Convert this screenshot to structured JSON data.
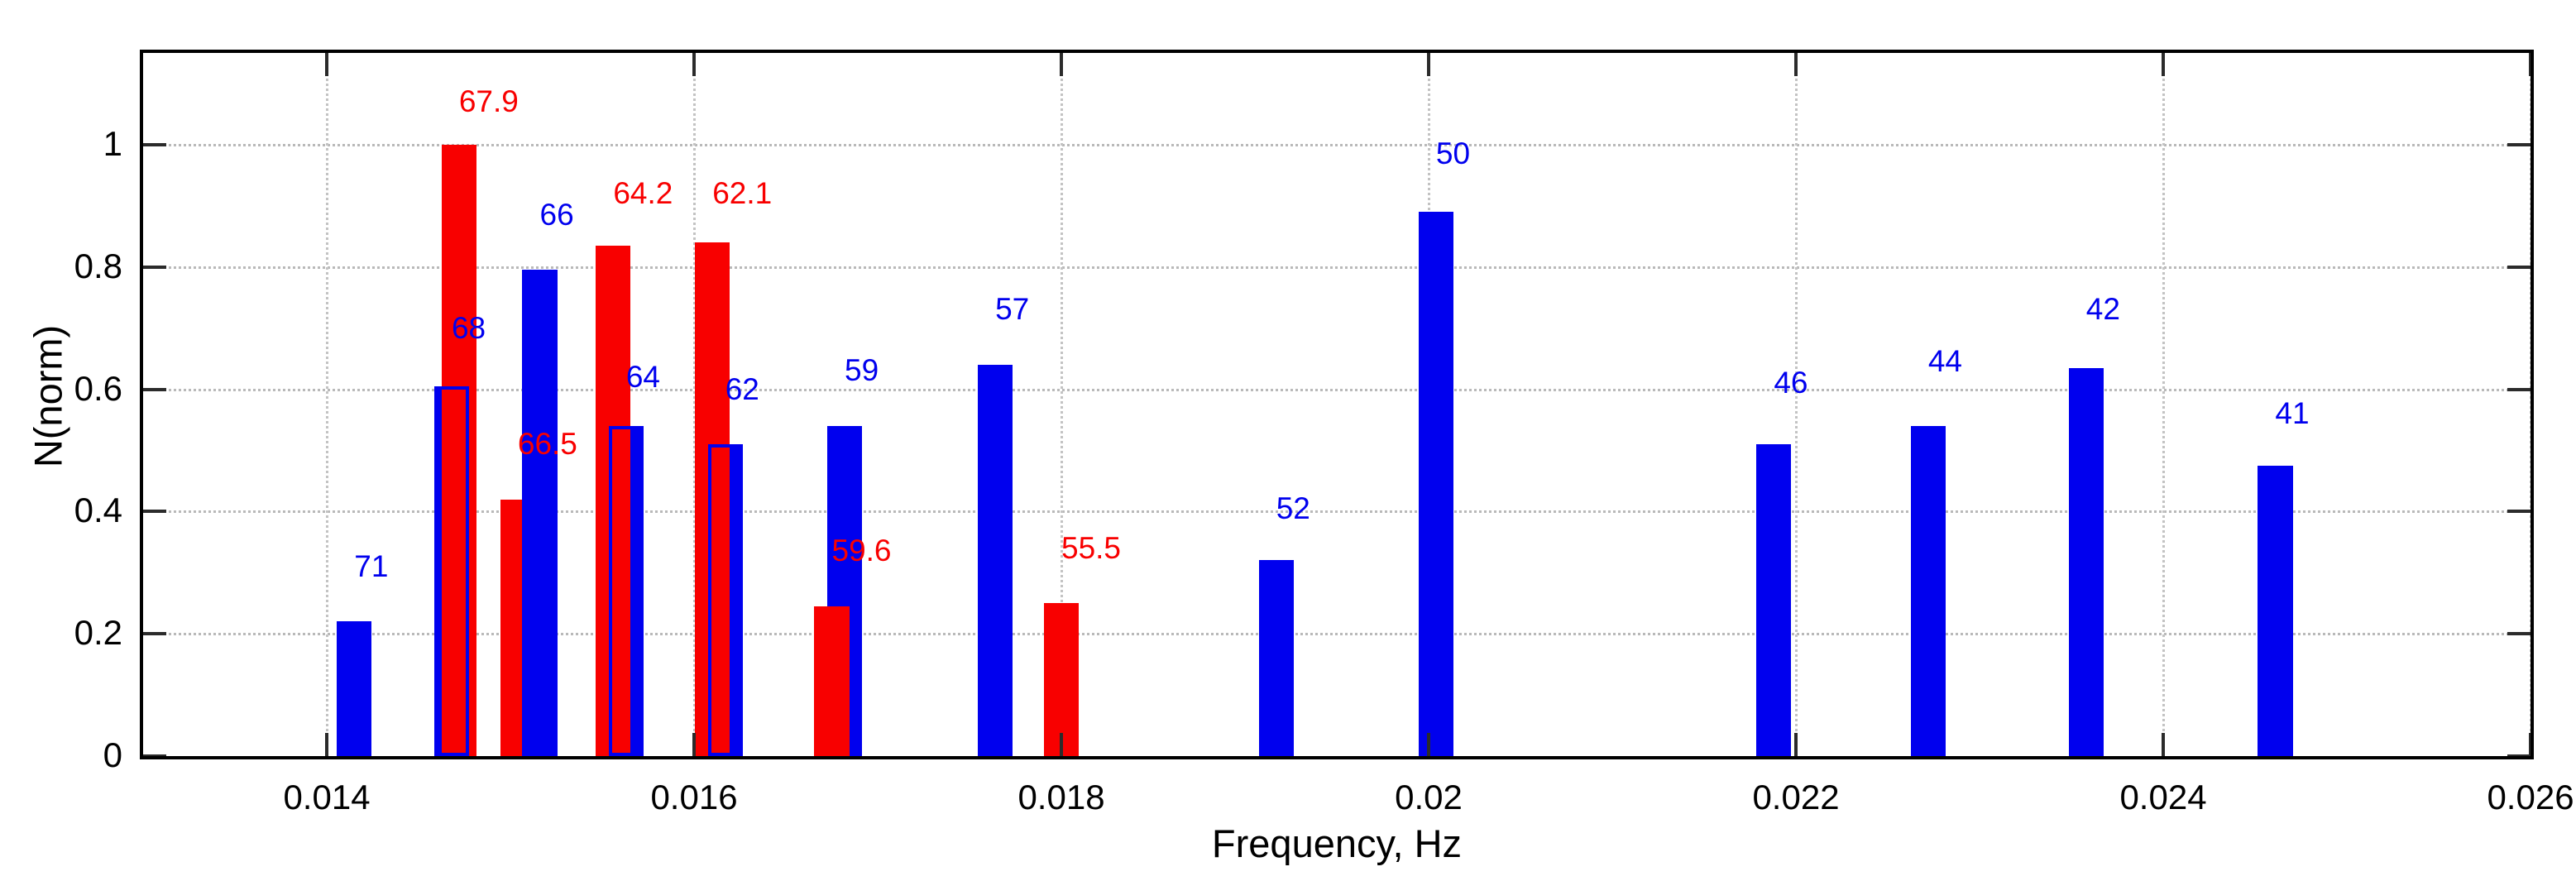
{
  "chart_data": {
    "type": "bar",
    "title": "",
    "xlabel": "Frequency, Hz",
    "ylabel": "N(norm)",
    "xlim": [
      0.013,
      0.026
    ],
    "ylim": [
      0,
      1.15
    ],
    "grid": true,
    "x_ticks": [
      {
        "value": 0.014,
        "label": "0.014"
      },
      {
        "value": 0.016,
        "label": "0.016"
      },
      {
        "value": 0.018,
        "label": "0.018"
      },
      {
        "value": 0.02,
        "label": "0.02"
      },
      {
        "value": 0.022,
        "label": "0.022"
      },
      {
        "value": 0.024,
        "label": "0.024"
      },
      {
        "value": 0.026,
        "label": "0.026"
      }
    ],
    "y_ticks": [
      {
        "value": 0,
        "label": "0"
      },
      {
        "value": 0.2,
        "label": "0.2"
      },
      {
        "value": 0.4,
        "label": "0.4"
      },
      {
        "value": 0.6,
        "label": "0.6"
      },
      {
        "value": 0.8,
        "label": "0.8"
      },
      {
        "value": 1,
        "label": "1"
      }
    ],
    "bar_width_hz": 0.00019,
    "series": [
      {
        "name": "blue-series",
        "color": "#0000EE",
        "bars": [
          {
            "label": "71",
            "x": 0.01415,
            "y": 0.22,
            "label_y": 0.31,
            "z": 1,
            "outline": false
          },
          {
            "label": "68",
            "x": 0.01468,
            "y": 0.605,
            "label_y": 0.7,
            "z": 1,
            "outline": true
          },
          {
            "label": "66",
            "x": 0.01516,
            "y": 0.795,
            "label_y": 0.885,
            "z": 2,
            "outline": false
          },
          {
            "label": "64",
            "x": 0.01563,
            "y": 0.54,
            "label_y": 0.62,
            "z": 1,
            "outline": true
          },
          {
            "label": "62",
            "x": 0.01617,
            "y": 0.51,
            "label_y": 0.6,
            "z": 1,
            "outline": true
          },
          {
            "label": "59",
            "x": 0.01682,
            "y": 0.54,
            "label_y": 0.63,
            "z": 1,
            "outline": false
          },
          {
            "label": "57",
            "x": 0.01764,
            "y": 0.64,
            "label_y": 0.73,
            "z": 1,
            "outline": false
          },
          {
            "label": "52",
            "x": 0.01917,
            "y": 0.32,
            "label_y": 0.405,
            "z": 1,
            "outline": false
          },
          {
            "label": "50",
            "x": 0.02004,
            "y": 0.89,
            "label_y": 0.985,
            "z": 1,
            "outline": false
          },
          {
            "label": "46",
            "x": 0.02188,
            "y": 0.51,
            "label_y": 0.61,
            "z": 1,
            "outline": false
          },
          {
            "label": "44",
            "x": 0.02272,
            "y": 0.54,
            "label_y": 0.645,
            "z": 1,
            "outline": false
          },
          {
            "label": "42",
            "x": 0.02358,
            "y": 0.635,
            "label_y": 0.73,
            "z": 1,
            "outline": false
          },
          {
            "label": "41",
            "x": 0.02461,
            "y": 0.475,
            "label_y": 0.56,
            "z": 1,
            "outline": false
          }
        ]
      },
      {
        "name": "red-series",
        "color": "#F80000",
        "bars": [
          {
            "label": "67.9",
            "x": 0.01472,
            "y": 1.0,
            "label_y": 1.07,
            "z": 2,
            "outline": false
          },
          {
            "label": "66.5",
            "x": 0.01504,
            "y": 0.42,
            "label_y": 0.51,
            "z": 1,
            "outline": false
          },
          {
            "label": "64.2",
            "x": 0.01556,
            "y": 0.835,
            "label_y": 0.92,
            "z": 2,
            "outline": false
          },
          {
            "label": "62.1",
            "x": 0.0161,
            "y": 0.84,
            "label_y": 0.92,
            "z": 2,
            "outline": false
          },
          {
            "label": "59.6",
            "x": 0.01675,
            "y": 0.245,
            "label_y": 0.335,
            "z": 2,
            "outline": false
          },
          {
            "label": "55.5",
            "x": 0.018,
            "y": 0.25,
            "label_y": 0.34,
            "z": 2,
            "outline": false
          }
        ]
      }
    ]
  },
  "colors": {
    "background": "#ffffff",
    "axis_border": "#000000",
    "tick_mark": "#2b2b2b",
    "gridline": "#b9b9b9",
    "blue_bar": "#0000EE",
    "red_bar": "#F80000"
  }
}
